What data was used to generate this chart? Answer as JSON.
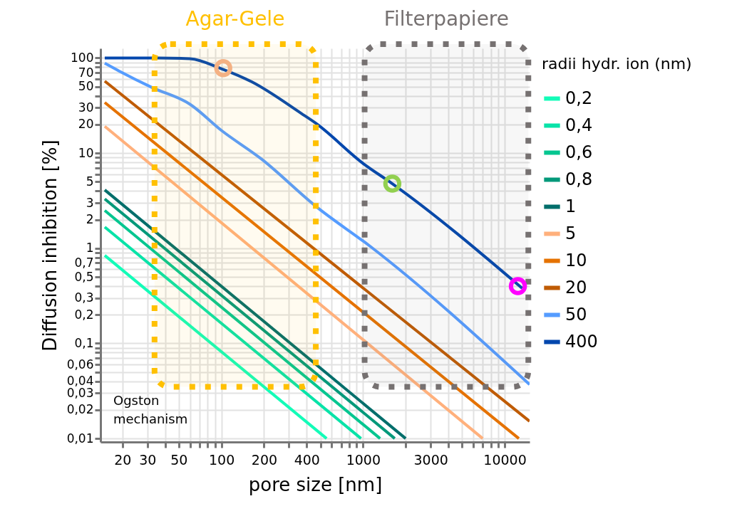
{
  "chart_data": {
    "type": "line",
    "xlabel": "pore size [nm]",
    "ylabel": "Diffusion inhibition [%]",
    "legend_title": "radii hydr. ion (nm)",
    "legend": "right",
    "log": "xy",
    "grid": true,
    "xlim": [
      14,
      15000
    ],
    "ylim": [
      0.0092,
      126
    ],
    "xticks": [
      20,
      30,
      {
        "value": 40,
        "label": null
      },
      50,
      {
        "value": 60,
        "label": null
      },
      {
        "value": 70,
        "label": null
      },
      {
        "value": 80,
        "label": null
      },
      {
        "value": 90,
        "label": null
      },
      100,
      200,
      {
        "value": 300,
        "label": null
      },
      400,
      {
        "value": 500,
        "label": null
      },
      {
        "value": 600,
        "label": null
      },
      {
        "value": 700,
        "label": null
      },
      {
        "value": 800,
        "label": null
      },
      {
        "value": 900,
        "label": null
      },
      1000,
      {
        "value": 2000,
        "label": null
      },
      3000,
      {
        "value": 4000,
        "label": null
      },
      {
        "value": 5000,
        "label": null
      },
      {
        "value": 6000,
        "label": null
      },
      {
        "value": 7000,
        "label": null
      },
      {
        "value": 8000,
        "label": null
      },
      {
        "value": 9000,
        "label": null
      },
      10000
    ],
    "yticks": [
      {
        "value": 0.01,
        "label": "0,01"
      },
      {
        "value": 0.02,
        "label": "0,02"
      },
      {
        "value": 0.03,
        "label": "0,03"
      },
      {
        "value": 0.04,
        "label": "0,04"
      },
      {
        "value": 0.05,
        "label": null
      },
      {
        "value": 0.06,
        "label": "0,06"
      },
      {
        "value": 0.07,
        "label": null
      },
      {
        "value": 0.08,
        "label": null
      },
      {
        "value": 0.09,
        "label": null
      },
      {
        "value": 0.1,
        "label": "0,1"
      },
      {
        "value": 0.2,
        "label": "0,2"
      },
      {
        "value": 0.3,
        "label": "0,3"
      },
      {
        "value": 0.4,
        "label": null
      },
      {
        "value": 0.5,
        "label": "0,5"
      },
      {
        "value": 0.6,
        "label": null
      },
      {
        "value": 0.7,
        "label": "0,7"
      },
      {
        "value": 0.8,
        "label": null
      },
      {
        "value": 0.9,
        "label": null
      },
      1,
      2,
      3,
      {
        "value": 4,
        "label": null
      },
      5,
      {
        "value": 6,
        "label": null
      },
      {
        "value": 7,
        "label": null
      },
      {
        "value": 8,
        "label": null
      },
      {
        "value": 9,
        "label": null
      },
      10,
      20,
      30,
      {
        "value": 40,
        "label": null
      },
      50,
      {
        "value": 60,
        "label": null
      },
      70,
      {
        "value": 80,
        "label": null
      },
      {
        "value": 90,
        "label": null
      },
      100
    ],
    "series": [
      {
        "name": "0,2",
        "color": "#13fcb8",
        "x": [
          15,
          553
        ],
        "values": [
          0.84,
          0.01
        ]
      },
      {
        "name": "0,4",
        "color": "#08e3a8",
        "x": [
          15,
          968
        ],
        "values": [
          1.67,
          0.01
        ]
      },
      {
        "name": "0,6",
        "color": "#05c690",
        "x": [
          15,
          1320
        ],
        "values": [
          2.49,
          0.01
        ]
      },
      {
        "name": "0,8",
        "color": "#03997a",
        "x": [
          15,
          1675
        ],
        "values": [
          3.3,
          0.01
        ]
      },
      {
        "name": "1",
        "color": "#026e6b",
        "x": [
          15,
          2000
        ],
        "values": [
          4.1,
          0.01
        ]
      },
      {
        "name": "5",
        "color": "#ffb07c",
        "x": [
          15,
          7000
        ],
        "values": [
          19.1,
          0.01
        ]
      },
      {
        "name": "10",
        "color": "#e57200",
        "x": [
          15,
          12600
        ],
        "values": [
          34,
          0.01
        ]
      },
      {
        "name": "20",
        "color": "#bf5b04",
        "x": [
          15,
          15000
        ],
        "values": [
          57,
          0.0152
        ]
      },
      {
        "name": "50",
        "color": "#559cff",
        "x": [
          15,
          18.9,
          32.3,
          60,
          100,
          191,
          464,
          1130,
          15000
        ],
        "values": [
          88,
          73,
          49,
          32.6,
          17.3,
          8.7,
          2.76,
          1.04,
          0.037
        ]
      },
      {
        "name": "400",
        "color": "#0347ad",
        "x": [
          15,
          36,
          60,
          100,
          164,
          368,
          464,
          1000,
          1610,
          13300
        ],
        "values": [
          100,
          100,
          98,
          77,
          56,
          26,
          20.6,
          7.8,
          4.77,
          0.38
        ]
      },
      {
        "type": "scatter",
        "marker": "circle",
        "x": [
          103,
          1610,
          12400
        ],
        "values": [
          78,
          4.77,
          0.4
        ],
        "colors": [
          "#f4b183",
          "#92d050",
          "#ff00ff"
        ]
      }
    ],
    "bands": [
      {
        "axis": "x",
        "from": 33.7,
        "to": 464,
        "label": "Agar-Gele",
        "color": "#ffc000"
      },
      {
        "axis": "x",
        "from": 1026,
        "to": 14700,
        "label": "Filterpapiere",
        "color": "#767171"
      }
    ],
    "annotations": [
      "Ogston mechanism"
    ]
  }
}
